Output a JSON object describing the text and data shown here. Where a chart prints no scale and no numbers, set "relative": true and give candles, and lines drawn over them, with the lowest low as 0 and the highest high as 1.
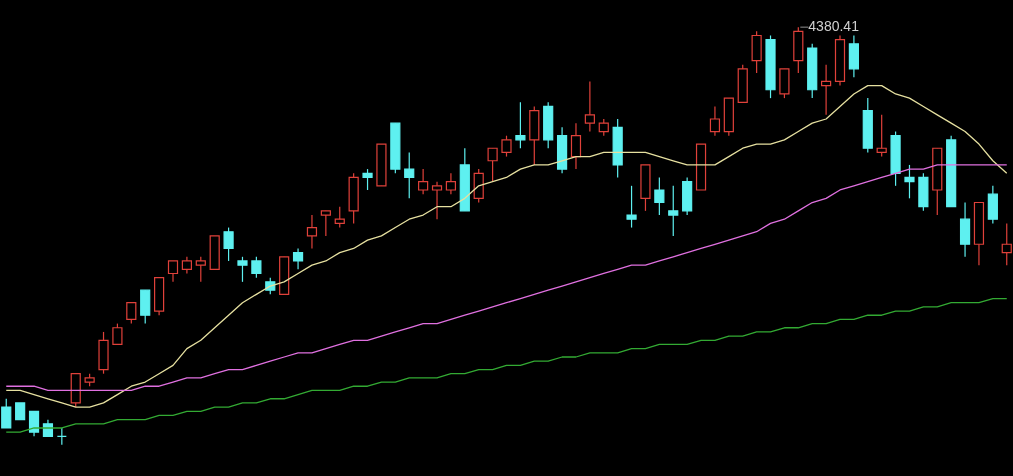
{
  "chart_data": {
    "type": "candlestick",
    "relative": true,
    "categories": [
      null,
      null,
      null,
      null,
      null,
      null,
      null,
      null,
      null,
      null,
      null,
      null,
      null,
      null,
      null,
      null,
      null,
      null,
      null,
      null,
      null,
      null,
      null,
      null,
      null,
      null,
      null,
      null,
      null,
      null,
      null,
      null,
      null,
      null,
      null,
      null,
      null,
      null,
      null,
      null,
      null,
      null,
      null,
      null,
      null,
      null,
      null,
      null,
      null,
      null,
      null,
      null,
      null,
      null,
      null,
      null,
      null,
      null,
      null,
      null,
      null,
      null,
      null,
      null,
      null,
      null,
      null,
      null,
      null,
      null,
      null,
      null,
      null
    ],
    "ohlc": [
      [
        0.09,
        0.11,
        0.04,
        0.04
      ],
      [
        0.1,
        0.1,
        0.06,
        0.06
      ],
      [
        0.08,
        0.08,
        0.02,
        0.03
      ],
      [
        0.05,
        0.06,
        0.02,
        0.02
      ],
      [
        0.02,
        0.04,
        0,
        0.02
      ],
      [
        0.1,
        0.17,
        0.09,
        0.17
      ],
      [
        0.15,
        0.17,
        0.14,
        0.16
      ],
      [
        0.18,
        0.27,
        0.17,
        0.25
      ],
      [
        0.24,
        0.29,
        0.24,
        0.28
      ],
      [
        0.3,
        0.34,
        0.29,
        0.34
      ],
      [
        0.37,
        0.37,
        0.29,
        0.31
      ],
      [
        0.32,
        0.4,
        0.31,
        0.4
      ],
      [
        0.41,
        0.44,
        0.39,
        0.44
      ],
      [
        0.42,
        0.45,
        0.41,
        0.44
      ],
      [
        0.43,
        0.45,
        0.39,
        0.44
      ],
      [
        0.42,
        0.5,
        0.42,
        0.5
      ],
      [
        0.51,
        0.52,
        0.44,
        0.47
      ],
      [
        0.44,
        0.45,
        0.39,
        0.43
      ],
      [
        0.44,
        0.45,
        0.4,
        0.41
      ],
      [
        0.39,
        0.4,
        0.36,
        0.37
      ],
      [
        0.36,
        0.45,
        0.36,
        0.45
      ],
      [
        0.46,
        0.47,
        0.42,
        0.44
      ],
      [
        0.5,
        0.55,
        0.47,
        0.52
      ],
      [
        0.55,
        0.56,
        0.5,
        0.56
      ],
      [
        0.53,
        0.57,
        0.52,
        0.54
      ],
      [
        0.56,
        0.65,
        0.53,
        0.64
      ],
      [
        0.65,
        0.66,
        0.61,
        0.64
      ],
      [
        0.62,
        0.72,
        0.62,
        0.72
      ],
      [
        0.77,
        0.77,
        0.65,
        0.66
      ],
      [
        0.66,
        0.7,
        0.59,
        0.64
      ],
      [
        0.61,
        0.66,
        0.6,
        0.63
      ],
      [
        0.61,
        0.63,
        0.54,
        0.62
      ],
      [
        0.61,
        0.65,
        0.6,
        0.63
      ],
      [
        0.67,
        0.71,
        0.56,
        0.56
      ],
      [
        0.59,
        0.66,
        0.58,
        0.65
      ],
      [
        0.68,
        0.71,
        0.63,
        0.71
      ],
      [
        0.7,
        0.74,
        0.69,
        0.73
      ],
      [
        0.74,
        0.82,
        0.71,
        0.73
      ],
      [
        0.73,
        0.81,
        0.67,
        0.8
      ],
      [
        0.81,
        0.82,
        0.71,
        0.73
      ],
      [
        0.74,
        0.76,
        0.65,
        0.66
      ],
      [
        0.69,
        0.77,
        0.66,
        0.74
      ],
      [
        0.77,
        0.87,
        0.75,
        0.79
      ],
      [
        0.75,
        0.78,
        0.74,
        0.77
      ],
      [
        0.76,
        0.78,
        0.64,
        0.67
      ],
      [
        0.55,
        0.62,
        0.52,
        0.54
      ],
      [
        0.59,
        0.67,
        0.56,
        0.67
      ],
      [
        0.61,
        0.64,
        0.55,
        0.58
      ],
      [
        0.56,
        0.62,
        0.5,
        0.55
      ],
      [
        0.63,
        0.64,
        0.55,
        0.56
      ],
      [
        0.61,
        0.72,
        0.61,
        0.72
      ],
      [
        0.75,
        0.81,
        0.74,
        0.78
      ],
      [
        0.75,
        0.83,
        0.74,
        0.83
      ],
      [
        0.82,
        0.91,
        0.82,
        0.9
      ],
      [
        0.92,
        0.99,
        0.89,
        0.98
      ],
      [
        0.97,
        0.98,
        0.83,
        0.85
      ],
      [
        0.84,
        0.9,
        0.83,
        0.9
      ],
      [
        0.92,
        1,
        0.89,
        0.99
      ],
      [
        0.95,
        0.96,
        0.83,
        0.85
      ],
      [
        0.86,
        0.91,
        0.79,
        0.87
      ],
      [
        0.87,
        0.98,
        0.86,
        0.97
      ],
      [
        0.96,
        0.98,
        0.88,
        0.9
      ],
      [
        0.8,
        0.83,
        0.7,
        0.71
      ],
      [
        0.7,
        0.79,
        0.69,
        0.71
      ],
      [
        0.74,
        0.75,
        0.62,
        0.65
      ],
      [
        0.64,
        0.67,
        0.59,
        0.63
      ],
      [
        0.64,
        0.65,
        0.56,
        0.57
      ],
      [
        0.61,
        0.71,
        0.55,
        0.71
      ],
      [
        0.73,
        0.74,
        0.57,
        0.57
      ],
      [
        0.54,
        0.58,
        0.45,
        0.48
      ],
      [
        0.48,
        0.58,
        0.43,
        0.58
      ],
      [
        0.6,
        0.62,
        0.53,
        0.54
      ],
      [
        0.46,
        0.53,
        0.43,
        0.48
      ]
    ],
    "colors": [
      "#5ef0f0",
      "#5ef0f0",
      "#5ef0f0",
      "#5ef0f0",
      "#5ef0f0",
      "#e0413a",
      "#e0413a",
      "#e0413a",
      "#e0413a",
      "#e0413a",
      "#5ef0f0",
      "#e0413a",
      "#e0413a",
      "#e0413a",
      "#e0413a",
      "#e0413a",
      "#5ef0f0",
      "#5ef0f0",
      "#5ef0f0",
      "#5ef0f0",
      "#e0413a",
      "#5ef0f0",
      "#e0413a",
      "#e0413a",
      "#e0413a",
      "#e0413a",
      "#5ef0f0",
      "#e0413a",
      "#5ef0f0",
      "#5ef0f0",
      "#e0413a",
      "#e0413a",
      "#e0413a",
      "#5ef0f0",
      "#e0413a",
      "#e0413a",
      "#e0413a",
      "#5ef0f0",
      "#e0413a",
      "#5ef0f0",
      "#5ef0f0",
      "#e0413a",
      "#e0413a",
      "#e0413a",
      "#5ef0f0",
      "#5ef0f0",
      "#e0413a",
      "#5ef0f0",
      "#5ef0f0",
      "#5ef0f0",
      "#e0413a",
      "#e0413a",
      "#e0413a",
      "#e0413a",
      "#e0413a",
      "#5ef0f0",
      "#e0413a",
      "#e0413a",
      "#5ef0f0",
      "#e0413a",
      "#e0413a",
      "#5ef0f0",
      "#5ef0f0",
      "#e0413a",
      "#5ef0f0",
      "#5ef0f0",
      "#5ef0f0",
      "#e0413a",
      "#5ef0f0",
      "#5ef0f0",
      "#e0413a",
      "#5ef0f0",
      "#e0413a"
    ],
    "series": [
      {
        "type": "line",
        "color": "#e6e0a0",
        "values": [
          0.13,
          0.13,
          0.12,
          0.11,
          0.1,
          0.09,
          0.09,
          0.1,
          0.12,
          0.14,
          0.15,
          0.17,
          0.19,
          0.23,
          0.25,
          0.28,
          0.31,
          0.34,
          0.36,
          0.38,
          0.39,
          0.41,
          0.43,
          0.44,
          0.46,
          0.47,
          0.49,
          0.5,
          0.52,
          0.54,
          0.55,
          0.57,
          0.57,
          0.59,
          0.62,
          0.63,
          0.64,
          0.66,
          0.67,
          0.67,
          0.68,
          0.69,
          0.69,
          0.7,
          0.7,
          0.7,
          0.7,
          0.69,
          0.68,
          0.67,
          0.67,
          0.67,
          0.69,
          0.71,
          0.72,
          0.72,
          0.73,
          0.75,
          0.77,
          0.78,
          0.81,
          0.84,
          0.86,
          0.86,
          0.84,
          0.83,
          0.81,
          0.79,
          0.77,
          0.75,
          0.72,
          0.68,
          0.65
        ]
      },
      {
        "type": "line",
        "color": "#e070e0",
        "values": [
          0.14,
          0.14,
          0.14,
          0.13,
          0.13,
          0.13,
          0.13,
          0.13,
          0.13,
          0.13,
          0.14,
          0.14,
          0.15,
          0.16,
          0.16,
          0.17,
          0.18,
          0.18,
          0.19,
          0.2,
          0.21,
          0.22,
          0.22,
          0.23,
          0.24,
          0.25,
          0.25,
          0.26,
          0.27,
          0.28,
          0.29,
          0.29,
          0.3,
          0.31,
          0.32,
          0.33,
          0.34,
          0.35,
          0.36,
          0.37,
          0.38,
          0.39,
          0.4,
          0.41,
          0.42,
          0.43,
          0.43,
          0.44,
          0.45,
          0.46,
          0.47,
          0.48,
          0.49,
          0.5,
          0.51,
          0.53,
          0.54,
          0.56,
          0.58,
          0.59,
          0.61,
          0.62,
          0.63,
          0.64,
          0.65,
          0.66,
          0.66,
          0.67,
          0.67,
          0.67,
          0.67,
          0.67,
          0.67
        ]
      },
      {
        "type": "line",
        "color": "#33aa33",
        "values": [
          0.03,
          0.03,
          0.04,
          0.04,
          0.04,
          0.05,
          0.05,
          0.05,
          0.06,
          0.06,
          0.06,
          0.07,
          0.07,
          0.08,
          0.08,
          0.09,
          0.09,
          0.1,
          0.1,
          0.11,
          0.11,
          0.12,
          0.13,
          0.13,
          0.13,
          0.14,
          0.14,
          0.15,
          0.15,
          0.16,
          0.16,
          0.16,
          0.17,
          0.17,
          0.18,
          0.18,
          0.19,
          0.19,
          0.2,
          0.2,
          0.21,
          0.21,
          0.22,
          0.22,
          0.22,
          0.23,
          0.23,
          0.24,
          0.24,
          0.24,
          0.25,
          0.25,
          0.26,
          0.26,
          0.27,
          0.27,
          0.28,
          0.28,
          0.29,
          0.29,
          0.3,
          0.3,
          0.31,
          0.31,
          0.32,
          0.32,
          0.33,
          0.33,
          0.34,
          0.34,
          0.34,
          0.35,
          0.35
        ]
      }
    ],
    "annotations": [
      "4380.41"
    ]
  }
}
